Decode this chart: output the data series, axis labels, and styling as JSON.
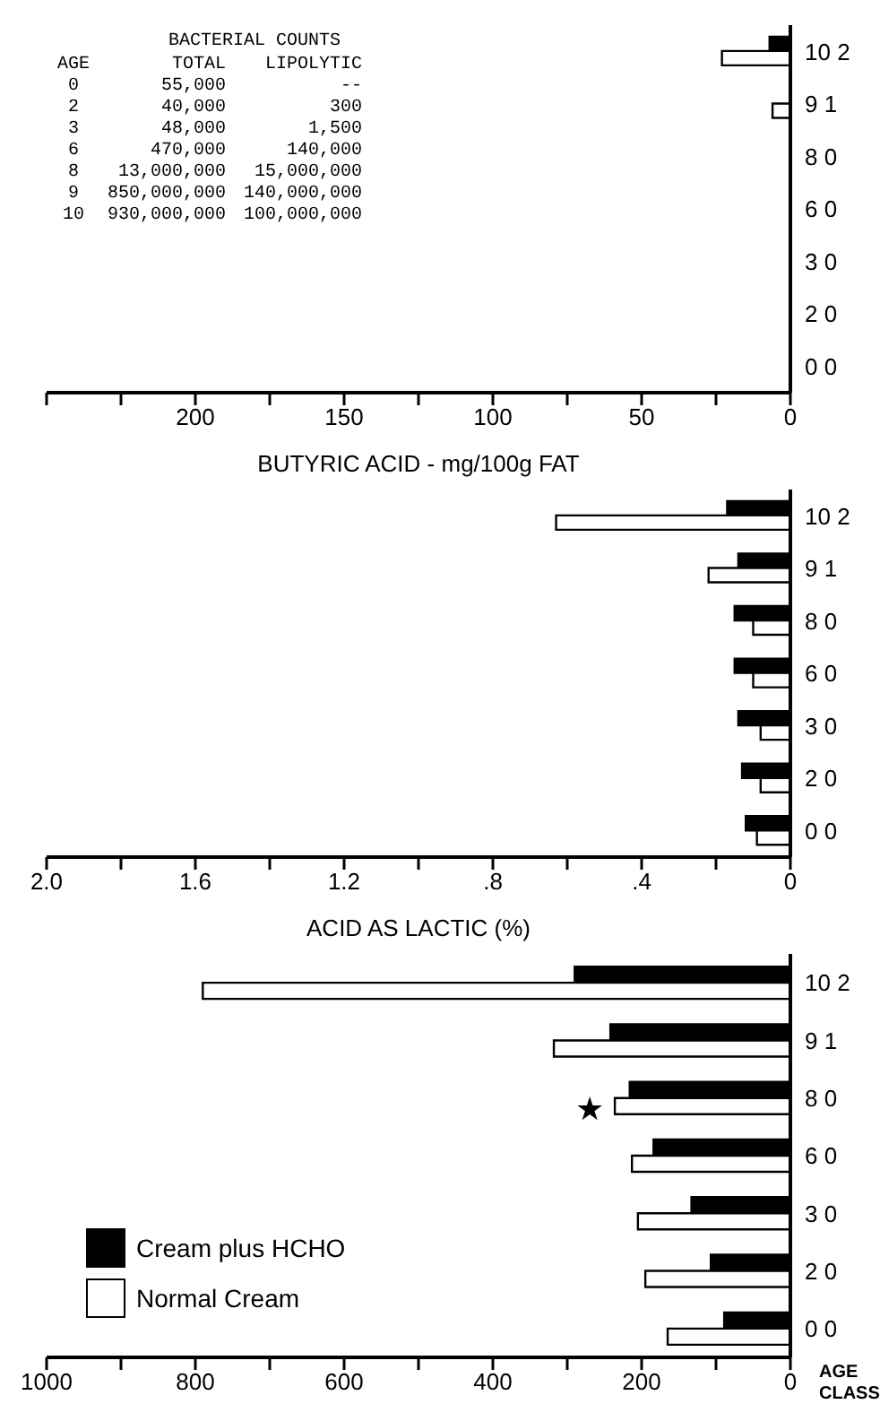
{
  "chart_data": [
    {
      "type": "bar",
      "orientation": "horizontal",
      "categories": [
        "10 2",
        "9 1",
        "8 0",
        "6 0",
        "3 0",
        "2 0",
        "0 0"
      ],
      "xlabel": "BUTYRIC ACID - mg/100g FAT",
      "series": [
        {
          "color": "#000000",
          "values": [
            7,
            0,
            0,
            0,
            0,
            0,
            0
          ]
        },
        {
          "color": "#ffffff",
          "values": [
            23,
            6,
            0,
            0,
            0,
            0,
            0
          ]
        }
      ],
      "xlim": [
        250,
        0
      ],
      "xticks": [
        {
          "value": 250,
          "label": null
        },
        {
          "value": 225,
          "label": null
        },
        200,
        {
          "value": 175,
          "label": null
        },
        150,
        {
          "value": 125,
          "label": null
        },
        100,
        {
          "value": 75,
          "label": null
        },
        50,
        {
          "value": 25,
          "label": null
        },
        0
      ],
      "annotations": [
        "BACTERIAL COUNTS",
        "AGE",
        "TOTAL",
        "LIPOLYTIC",
        "0",
        "55,000",
        "--",
        "2",
        "40,000",
        "300",
        "3",
        "48,000",
        "1,500",
        "6",
        "470,000",
        "140,000",
        "8",
        "13,000,000",
        "15,000,000",
        "9",
        "850,000,000",
        "140,000,000",
        "10",
        "930,000,000",
        "100,000,000"
      ]
    },
    {
      "type": "bar",
      "orientation": "horizontal",
      "categories": [
        "10 2",
        "9 1",
        "8 0",
        "6 0",
        "3 0",
        "2 0",
        "0 0"
      ],
      "xlabel": "ACID AS LACTIC (%)",
      "series": [
        {
          "color": "#000000",
          "values": [
            0.17,
            0.14,
            0.15,
            0.15,
            0.14,
            0.13,
            0.12
          ]
        },
        {
          "color": "#ffffff",
          "values": [
            0.63,
            0.22,
            0.1,
            0.1,
            0.08,
            0.08,
            0.09
          ]
        }
      ],
      "xlim": [
        2.0,
        0
      ],
      "xticks": [
        {
          "value": 2.0,
          "label": "2.0"
        },
        {
          "value": 1.8,
          "label": null
        },
        1.6,
        {
          "value": 1.4,
          "label": null
        },
        1.2,
        {
          "value": 1.0,
          "label": null
        },
        {
          "value": 0.8,
          "label": ".8"
        },
        {
          "value": 0.6,
          "label": null
        },
        {
          "value": 0.4,
          "label": ".4"
        },
        {
          "value": 0.2,
          "label": null
        },
        0
      ]
    },
    {
      "type": "bar",
      "orientation": "horizontal",
      "categories": [
        "10 2",
        "9 1",
        "8 0",
        "6 0",
        "3 0",
        "2 0",
        "0 0"
      ],
      "ylabel": "AGE CLASS",
      "series": [
        {
          "name": "Cream plus HCHO",
          "color": "#000000",
          "values": [
            290,
            242,
            216,
            184,
            133,
            107,
            89
          ]
        },
        {
          "name": "Normal Cream",
          "color": "#ffffff",
          "values": [
            790,
            318,
            236,
            213,
            205,
            195,
            165
          ]
        }
      ],
      "xlim": [
        1000,
        0
      ],
      "xticks": [
        1000,
        {
          "value": 900,
          "label": null
        },
        800,
        {
          "value": 700,
          "label": null
        },
        600,
        {
          "value": 500,
          "label": null
        },
        400,
        {
          "value": 300,
          "label": null
        },
        200,
        {
          "value": 100,
          "label": null
        },
        0
      ],
      "legend": "bottom left",
      "annotations": [
        {
          "text": "★",
          "x": 236,
          "y": "8 0"
        }
      ]
    }
  ]
}
